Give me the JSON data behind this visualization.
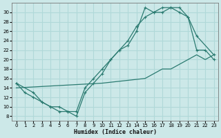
{
  "xlabel": "Humidex (Indice chaleur)",
  "bg_color": "#cce8e8",
  "grid_color": "#b0d8d8",
  "line_color": "#2a7a70",
  "xlim": [
    -0.5,
    23.5
  ],
  "ylim": [
    7,
    32
  ],
  "xticks": [
    0,
    1,
    2,
    3,
    4,
    5,
    6,
    7,
    8,
    9,
    10,
    11,
    12,
    13,
    14,
    15,
    16,
    17,
    18,
    19,
    20,
    21,
    22,
    23
  ],
  "yticks": [
    8,
    10,
    12,
    14,
    16,
    18,
    20,
    22,
    24,
    26,
    28,
    30
  ],
  "line1_x": [
    0,
    1,
    2,
    3,
    4,
    5,
    6,
    7,
    8,
    9,
    10,
    11,
    12,
    13,
    14,
    15,
    16,
    17,
    18,
    19,
    20,
    21,
    22,
    23
  ],
  "line1_y": [
    15,
    13,
    12,
    11,
    10,
    9,
    9,
    8,
    13,
    15,
    17,
    20,
    22,
    23,
    26,
    31,
    30,
    31,
    31,
    30,
    29,
    22,
    22,
    20
  ],
  "line2_x": [
    0,
    2,
    3,
    4,
    5,
    6,
    7,
    8,
    9,
    10,
    11,
    12,
    13,
    14,
    15,
    16,
    17,
    18,
    19,
    20,
    21,
    23
  ],
  "line2_y": [
    15,
    13,
    11,
    10,
    10,
    9,
    9,
    14,
    16,
    18,
    20,
    22,
    24,
    27,
    29,
    30,
    30,
    31,
    31,
    29,
    25,
    21
  ],
  "line3_x": [
    0,
    10,
    15,
    16,
    17,
    18,
    19,
    20,
    21,
    22,
    23
  ],
  "line3_y": [
    14,
    15,
    16,
    17,
    18,
    18,
    19,
    20,
    21,
    20,
    21
  ]
}
